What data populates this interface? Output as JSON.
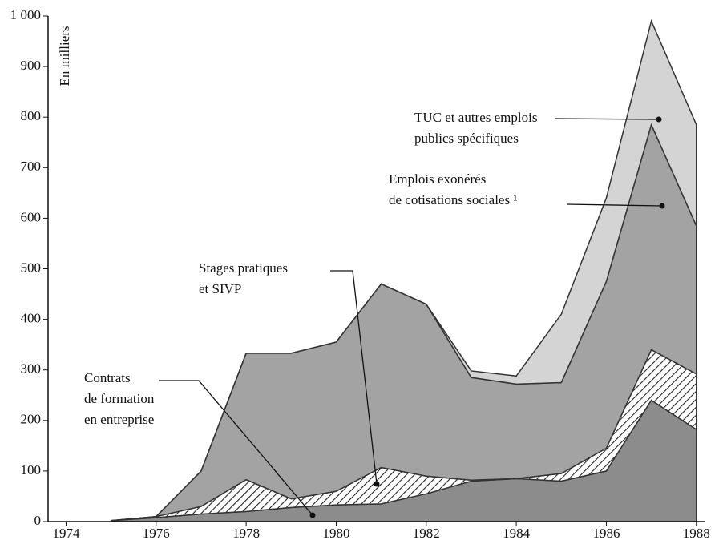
{
  "chart_data": {
    "type": "stacked_area",
    "axis_label": "En milliers",
    "x": [
      1975,
      1976,
      1977,
      1978,
      1979,
      1980,
      1981,
      1982,
      1983,
      1984,
      1985,
      1986,
      1987,
      1988
    ],
    "series": [
      {
        "label_lines": [
          "Contrats",
          "de formation",
          "en entreprise"
        ],
        "color": "#8c8c8c",
        "pattern": "none",
        "values": [
          2,
          8,
          15,
          20,
          28,
          33,
          35,
          55,
          80,
          85,
          80,
          100,
          240,
          182
        ]
      },
      {
        "label_lines": [
          "Stages pratiques",
          "et SIVP"
        ],
        "color": "#ffffff",
        "pattern": "hatch",
        "values": [
          0,
          2,
          15,
          63,
          17,
          27,
          72,
          35,
          2,
          0,
          15,
          45,
          100,
          110
        ]
      },
      {
        "label_lines": [
          "Emplois exonérés",
          "de cotisations sociales ¹"
        ],
        "color": "#a3a3a3",
        "pattern": "none",
        "values": [
          0,
          0,
          70,
          250,
          288,
          295,
          363,
          340,
          203,
          187,
          180,
          330,
          445,
          293
        ]
      },
      {
        "label_lines": [
          "TUC et autres emplois",
          "publics spécifiques"
        ],
        "color": "#d4d4d4",
        "pattern": "none",
        "values": [
          0,
          0,
          0,
          0,
          0,
          0,
          0,
          0,
          13,
          16,
          135,
          165,
          205,
          200
        ]
      }
    ],
    "xlim": [
      1973.6,
      1988.2
    ],
    "xticks": [
      1974,
      1976,
      1978,
      1980,
      1982,
      1984,
      1986,
      1988
    ],
    "ylim": [
      0,
      1000
    ],
    "yticks": [
      0,
      100,
      200,
      300,
      400,
      500,
      600,
      700,
      800,
      900,
      {
        "value": 1000,
        "label": "1 000"
      }
    ]
  }
}
